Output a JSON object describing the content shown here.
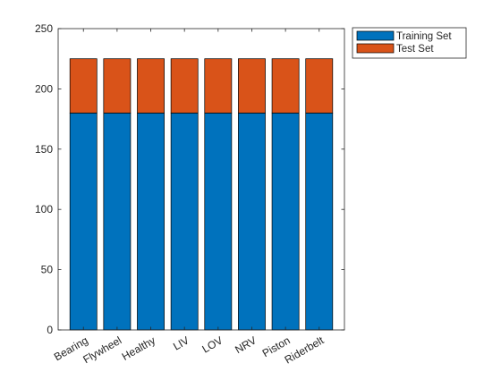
{
  "chart_data": {
    "type": "bar",
    "stacked": true,
    "categories": [
      "Bearing",
      "Flywheel",
      "Healthy",
      "LIV",
      "LOV",
      "NRV",
      "Piston",
      "Riderbelt"
    ],
    "series": [
      {
        "name": "Training Set",
        "values": [
          180,
          180,
          180,
          180,
          180,
          180,
          180,
          180
        ],
        "color": "#0072BD"
      },
      {
        "name": "Test Set",
        "values": [
          45,
          45,
          45,
          45,
          45,
          45,
          45,
          45
        ],
        "color": "#D95319"
      }
    ],
    "ylim": [
      0,
      250
    ],
    "yticks": [
      0,
      50,
      100,
      150,
      200,
      250
    ],
    "grid": false,
    "legend_position": "outside-top-right"
  }
}
